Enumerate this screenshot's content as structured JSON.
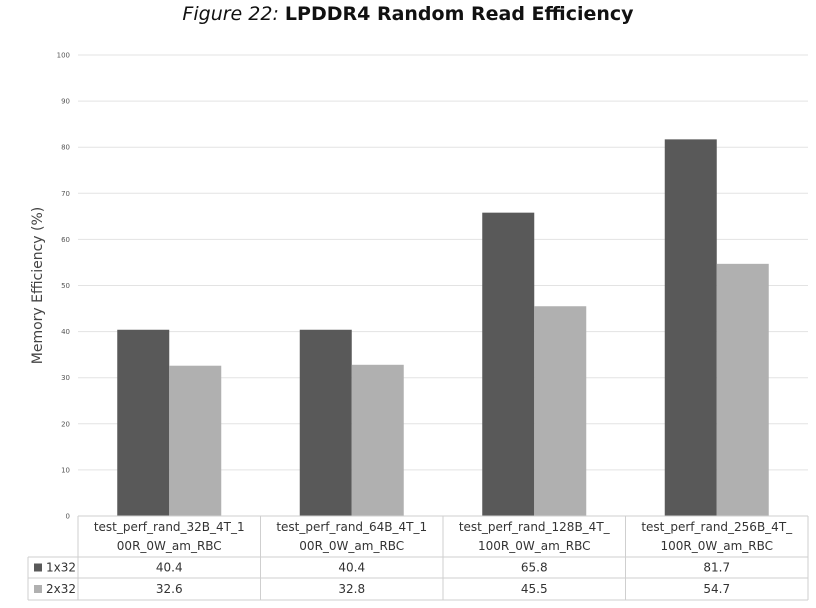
{
  "title": {
    "figure": "Figure 22:",
    "main": "LPDDR4 Random Read Efficiency"
  },
  "chart_data": {
    "type": "bar",
    "ylabel": "Memory Efficiency (%)",
    "xlabel": "",
    "ylim": [
      0,
      100
    ],
    "yticks": [
      0,
      10,
      20,
      30,
      40,
      50,
      60,
      70,
      80,
      90,
      100
    ],
    "grid": true,
    "legend": "data-table",
    "categories": [
      [
        "test_perf_rand_32B_4T_1",
        "00R_0W_am_RBC"
      ],
      [
        "test_perf_rand_64B_4T_1",
        "00R_0W_am_RBC"
      ],
      [
        "test_perf_rand_128B_4T_",
        "100R_0W_am_RBC"
      ],
      [
        "test_perf_rand_256B_4T_",
        "100R_0W_am_RBC"
      ]
    ],
    "series": [
      {
        "name": "1x32",
        "color": "#595959",
        "values": [
          40.4,
          40.4,
          65.8,
          81.7
        ]
      },
      {
        "name": "2x32",
        "color": "#b0b0b0",
        "values": [
          32.6,
          32.8,
          45.5,
          54.7
        ]
      }
    ]
  }
}
